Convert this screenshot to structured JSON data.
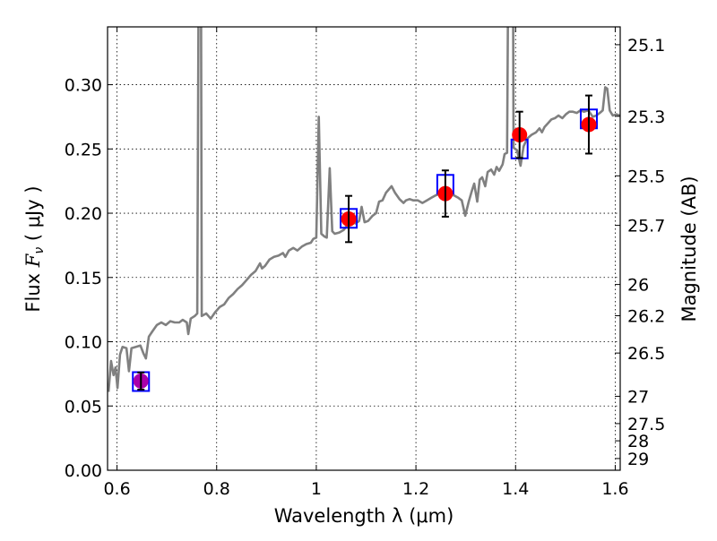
{
  "chart_data": {
    "type": "line",
    "xlabel": "Wavelength  λ (μm)",
    "ylabel_prefix": "Flux  ",
    "ylabel_symbol": "F",
    "ylabel_sub": "ν",
    "ylabel_suffix": "  ( μJy )",
    "y2label": "Magnitude (AB)",
    "xlim": [
      0.581,
      1.61
    ],
    "ylim": [
      0.0,
      0.345
    ],
    "grid": true,
    "xticks": [
      0.6,
      0.8,
      1.0,
      1.2,
      1.4,
      1.6
    ],
    "xtick_labels": [
      "0.6",
      "0.8",
      "1",
      "1.2",
      "1.4",
      "1.6"
    ],
    "yticks": [
      0.0,
      0.05,
      0.1,
      0.15,
      0.2,
      0.25,
      0.3
    ],
    "ytick_labels": [
      "0.00",
      "0.05",
      "0.10",
      "0.15",
      "0.20",
      "0.25",
      "0.30"
    ],
    "y2ticks": [
      25.1,
      25.3,
      25.5,
      25.7,
      26,
      26.2,
      26.5,
      27,
      27.5,
      28,
      29
    ],
    "y2tick_labels": [
      "25.1",
      "25.3",
      "25.5",
      "25.7",
      "26",
      "26.2",
      "26.5",
      "27",
      "27.5",
      "28",
      "29"
    ],
    "colors": {
      "spectrum": "#808080",
      "model_box": "#0000ff",
      "observed": "#ff0000",
      "first_point": "#aa00aa",
      "errorbar": "#000000"
    },
    "spectrum": [
      [
        0.583,
        0.061
      ],
      [
        0.588,
        0.085
      ],
      [
        0.593,
        0.074
      ],
      [
        0.597,
        0.08
      ],
      [
        0.601,
        0.064
      ],
      [
        0.606,
        0.09
      ],
      [
        0.611,
        0.096
      ],
      [
        0.619,
        0.095
      ],
      [
        0.624,
        0.077
      ],
      [
        0.629,
        0.095
      ],
      [
        0.638,
        0.096
      ],
      [
        0.647,
        0.097
      ],
      [
        0.653,
        0.091
      ],
      [
        0.658,
        0.087
      ],
      [
        0.664,
        0.104
      ],
      [
        0.671,
        0.108
      ],
      [
        0.68,
        0.113
      ],
      [
        0.689,
        0.115
      ],
      [
        0.698,
        0.113
      ],
      [
        0.707,
        0.116
      ],
      [
        0.716,
        0.115
      ],
      [
        0.725,
        0.115
      ],
      [
        0.732,
        0.117
      ],
      [
        0.74,
        0.115
      ],
      [
        0.743,
        0.106
      ],
      [
        0.748,
        0.118
      ],
      [
        0.756,
        0.12
      ],
      [
        0.761,
        0.122
      ],
      [
        0.765,
        0.5
      ],
      [
        0.768,
        0.5
      ],
      [
        0.77,
        0.12
      ],
      [
        0.779,
        0.122
      ],
      [
        0.788,
        0.118
      ],
      [
        0.797,
        0.123
      ],
      [
        0.806,
        0.127
      ],
      [
        0.815,
        0.129
      ],
      [
        0.824,
        0.134
      ],
      [
        0.833,
        0.137
      ],
      [
        0.842,
        0.141
      ],
      [
        0.851,
        0.144
      ],
      [
        0.86,
        0.148
      ],
      [
        0.869,
        0.152
      ],
      [
        0.878,
        0.155
      ],
      [
        0.887,
        0.161
      ],
      [
        0.891,
        0.157
      ],
      [
        0.897,
        0.159
      ],
      [
        0.906,
        0.164
      ],
      [
        0.915,
        0.166
      ],
      [
        0.924,
        0.167
      ],
      [
        0.933,
        0.169
      ],
      [
        0.938,
        0.166
      ],
      [
        0.945,
        0.171
      ],
      [
        0.954,
        0.173
      ],
      [
        0.962,
        0.171
      ],
      [
        0.971,
        0.174
      ],
      [
        0.98,
        0.176
      ],
      [
        0.989,
        0.177
      ],
      [
        0.994,
        0.18
      ],
      [
        1.0,
        0.181
      ],
      [
        1.005,
        0.275
      ],
      [
        1.01,
        0.184
      ],
      [
        1.016,
        0.182
      ],
      [
        1.021,
        0.181
      ],
      [
        1.027,
        0.235
      ],
      [
        1.032,
        0.186
      ],
      [
        1.037,
        0.184
      ],
      [
        1.046,
        0.185
      ],
      [
        1.055,
        0.187
      ],
      [
        1.059,
        0.189
      ],
      [
        1.068,
        0.194
      ],
      [
        1.079,
        0.192
      ],
      [
        1.086,
        0.194
      ],
      [
        1.091,
        0.205
      ],
      [
        1.097,
        0.193
      ],
      [
        1.104,
        0.194
      ],
      [
        1.113,
        0.198
      ],
      [
        1.12,
        0.2
      ],
      [
        1.126,
        0.209
      ],
      [
        1.133,
        0.21
      ],
      [
        1.14,
        0.216
      ],
      [
        1.151,
        0.221
      ],
      [
        1.158,
        0.216
      ],
      [
        1.167,
        0.211
      ],
      [
        1.175,
        0.208
      ],
      [
        1.18,
        0.21
      ],
      [
        1.187,
        0.211
      ],
      [
        1.195,
        0.21
      ],
      [
        1.204,
        0.21
      ],
      [
        1.213,
        0.208
      ],
      [
        1.222,
        0.21
      ],
      [
        1.231,
        0.212
      ],
      [
        1.24,
        0.214
      ],
      [
        1.249,
        0.215
      ],
      [
        1.258,
        0.216
      ],
      [
        1.267,
        0.214
      ],
      [
        1.276,
        0.214
      ],
      [
        1.285,
        0.212
      ],
      [
        1.292,
        0.21
      ],
      [
        1.299,
        0.198
      ],
      [
        1.306,
        0.209
      ],
      [
        1.312,
        0.217
      ],
      [
        1.317,
        0.223
      ],
      [
        1.323,
        0.209
      ],
      [
        1.328,
        0.226
      ],
      [
        1.333,
        0.228
      ],
      [
        1.339,
        0.221
      ],
      [
        1.344,
        0.232
      ],
      [
        1.351,
        0.234
      ],
      [
        1.357,
        0.23
      ],
      [
        1.362,
        0.236
      ],
      [
        1.367,
        0.233
      ],
      [
        1.374,
        0.238
      ],
      [
        1.378,
        0.246
      ],
      [
        1.383,
        0.247
      ],
      [
        1.387,
        0.5
      ],
      [
        1.394,
        0.5
      ],
      [
        1.396,
        0.251
      ],
      [
        1.403,
        0.249
      ],
      [
        1.41,
        0.237
      ],
      [
        1.416,
        0.252
      ],
      [
        1.423,
        0.258
      ],
      [
        1.432,
        0.261
      ],
      [
        1.441,
        0.263
      ],
      [
        1.448,
        0.266
      ],
      [
        1.453,
        0.263
      ],
      [
        1.458,
        0.267
      ],
      [
        1.465,
        0.27
      ],
      [
        1.472,
        0.273
      ],
      [
        1.479,
        0.274
      ],
      [
        1.486,
        0.276
      ],
      [
        1.494,
        0.274
      ],
      [
        1.501,
        0.277
      ],
      [
        1.508,
        0.279
      ],
      [
        1.515,
        0.279
      ],
      [
        1.523,
        0.278
      ],
      [
        1.53,
        0.28
      ],
      [
        1.537,
        0.279
      ],
      [
        1.546,
        0.28
      ],
      [
        1.555,
        0.275
      ],
      [
        1.562,
        0.276
      ],
      [
        1.569,
        0.278
      ],
      [
        1.575,
        0.28
      ],
      [
        1.58,
        0.298
      ],
      [
        1.584,
        0.297
      ],
      [
        1.589,
        0.28
      ],
      [
        1.595,
        0.276
      ],
      [
        1.602,
        0.277
      ],
      [
        1.609,
        0.276
      ]
    ],
    "model_boxes": [
      {
        "x": 0.648,
        "y": 0.069
      },
      {
        "x": 1.065,
        "y": 0.196
      },
      {
        "x": 1.259,
        "y": 0.2225
      },
      {
        "x": 1.408,
        "y": 0.25
      },
      {
        "x": 1.547,
        "y": 0.2734
      }
    ],
    "observed": [
      {
        "x": 0.648,
        "y": 0.0694,
        "err": 0.0067,
        "color": "#aa00aa"
      },
      {
        "x": 1.065,
        "y": 0.1955,
        "err": 0.018,
        "color": "#ff0000"
      },
      {
        "x": 1.259,
        "y": 0.2153,
        "err": 0.018,
        "color": "#ff0000"
      },
      {
        "x": 1.408,
        "y": 0.261,
        "err": 0.018,
        "color": "#ff0000"
      },
      {
        "x": 1.547,
        "y": 0.269,
        "err": 0.0226,
        "color": "#ff0000"
      }
    ]
  }
}
